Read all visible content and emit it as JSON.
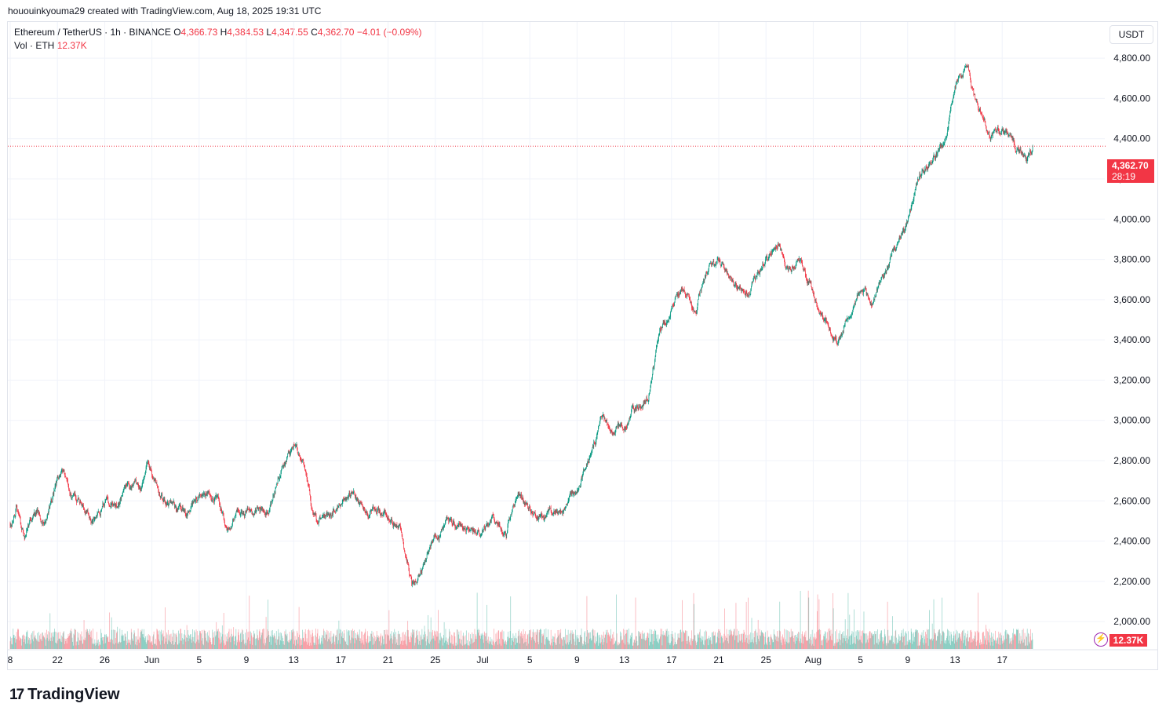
{
  "caption": "hououinkyouma29 created with TradingView.com, Aug 18, 2025 19:31 UTC",
  "legend": {
    "symbol": "Ethereum / TetherUS · 1h · BINANCE",
    "o_label": "O",
    "o_value": "4,366.73",
    "h_label": "H",
    "h_value": "4,384.53",
    "l_label": "L",
    "l_value": "4,347.55",
    "c_label": "C",
    "c_value": "4,362.70",
    "change": "−4.01 (−0.09%)",
    "vol_label": "Vol · ETH",
    "vol_value": "12.37K"
  },
  "currency_button": "USDT",
  "price_tag": {
    "price": "4,362.70",
    "countdown": "28:19"
  },
  "volume_tag": "12.37K",
  "brand": "TradingView",
  "colors": {
    "up": "#089981",
    "down": "#f23645",
    "grid": "#f0f3fa"
  },
  "chart_data": {
    "type": "candlestick",
    "title": "Ethereum / TetherUS · 1h · BINANCE",
    "ylim": [
      1860,
      4980
    ],
    "y_ticks": [
      "4,800.00",
      "4,600.00",
      "4,400.00",
      "4,200.00",
      "4,000.00",
      "3,800.00",
      "3,600.00",
      "3,400.00",
      "3,200.00",
      "3,000.00",
      "2,800.00",
      "2,600.00",
      "2,400.00",
      "2,200.00",
      "2,000.00"
    ],
    "y_tick_values": [
      4800,
      4600,
      4400,
      4200,
      4000,
      3800,
      3600,
      3400,
      3200,
      3000,
      2800,
      2600,
      2400,
      2200,
      2000
    ],
    "x_ticks": [
      "8",
      "22",
      "26",
      "Jun",
      "5",
      "9",
      "13",
      "17",
      "21",
      "25",
      "Jul",
      "5",
      "9",
      "13",
      "17",
      "21",
      "25",
      "Aug",
      "5",
      "9",
      "13",
      "17"
    ],
    "x_tick_days": [
      0,
      4,
      8,
      12,
      16,
      20,
      24,
      28,
      32,
      36,
      40,
      44,
      48,
      52,
      56,
      60,
      64,
      68,
      72,
      76,
      80,
      84
    ],
    "last_price": 4362.7,
    "price_path": [
      [
        0,
        2490
      ],
      [
        0.5,
        2580
      ],
      [
        1.2,
        2420
      ],
      [
        2,
        2560
      ],
      [
        3,
        2500
      ],
      [
        4,
        2700
      ],
      [
        4.5,
        2730
      ],
      [
        5,
        2620
      ],
      [
        6,
        2600
      ],
      [
        7,
        2520
      ],
      [
        8,
        2600
      ],
      [
        9,
        2570
      ],
      [
        10,
        2680
      ],
      [
        11,
        2660
      ],
      [
        11.7,
        2780
      ],
      [
        12.5,
        2640
      ],
      [
        13.5,
        2560
      ],
      [
        15,
        2540
      ],
      [
        16,
        2640
      ],
      [
        17.5,
        2610
      ],
      [
        18.5,
        2460
      ],
      [
        19,
        2540
      ],
      [
        21,
        2540
      ],
      [
        22,
        2560
      ],
      [
        23,
        2780
      ],
      [
        24,
        2860
      ],
      [
        25,
        2760
      ],
      [
        25.5,
        2580
      ],
      [
        26,
        2520
      ],
      [
        28,
        2570
      ],
      [
        29,
        2660
      ],
      [
        30,
        2570
      ],
      [
        31,
        2520
      ],
      [
        32,
        2540
      ],
      [
        33,
        2470
      ],
      [
        34,
        2180
      ],
      [
        35,
        2300
      ],
      [
        36,
        2420
      ],
      [
        37,
        2470
      ],
      [
        39,
        2460
      ],
      [
        40,
        2460
      ],
      [
        41,
        2500
      ],
      [
        42,
        2440
      ],
      [
        43,
        2620
      ],
      [
        44,
        2560
      ],
      [
        45,
        2510
      ],
      [
        47,
        2550
      ],
      [
        48,
        2660
      ],
      [
        49,
        2800
      ],
      [
        50,
        3000
      ],
      [
        51,
        2950
      ],
      [
        52,
        2980
      ],
      [
        53,
        3080
      ],
      [
        54,
        3120
      ],
      [
        55,
        3450
      ],
      [
        56,
        3560
      ],
      [
        57,
        3640
      ],
      [
        58,
        3550
      ],
      [
        59,
        3740
      ],
      [
        60,
        3780
      ],
      [
        61,
        3700
      ],
      [
        62,
        3620
      ],
      [
        63,
        3690
      ],
      [
        64,
        3800
      ],
      [
        65,
        3880
      ],
      [
        66,
        3760
      ],
      [
        67,
        3770
      ],
      [
        68,
        3630
      ],
      [
        69,
        3480
      ],
      [
        70,
        3400
      ],
      [
        71,
        3540
      ],
      [
        72,
        3660
      ],
      [
        73,
        3600
      ],
      [
        74,
        3680
      ],
      [
        75,
        3860
      ],
      [
        76,
        3990
      ],
      [
        77,
        4240
      ],
      [
        78,
        4270
      ],
      [
        79,
        4380
      ],
      [
        80,
        4650
      ],
      [
        81,
        4760
      ],
      [
        82,
        4550
      ],
      [
        83,
        4400
      ],
      [
        84,
        4460
      ],
      [
        85,
        4380
      ],
      [
        86,
        4280
      ],
      [
        86.6,
        4362.7
      ]
    ],
    "volume_axis_max": 100000,
    "volume_unit": "ETH"
  }
}
